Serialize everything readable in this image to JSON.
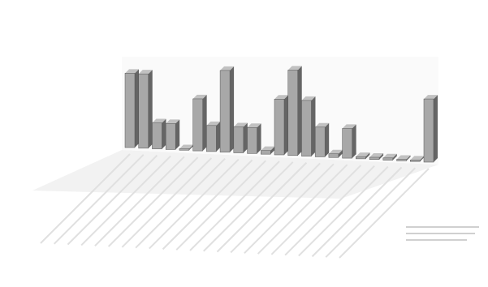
{
  "chart_data": {
    "type": "bar",
    "categories": [
      null,
      null,
      null,
      null,
      null,
      null,
      null,
      null,
      null,
      null,
      null,
      null,
      null,
      null,
      null,
      null,
      null,
      null,
      null,
      null,
      null,
      null,
      null
    ],
    "values": [
      100,
      100,
      35,
      35,
      2,
      70,
      35,
      110,
      35,
      35,
      5,
      75,
      115,
      75,
      40,
      5,
      40,
      3,
      3,
      3,
      2,
      2,
      85
    ],
    "color": "#a8a8a8",
    "ylim": [
      0,
      120
    ]
  }
}
